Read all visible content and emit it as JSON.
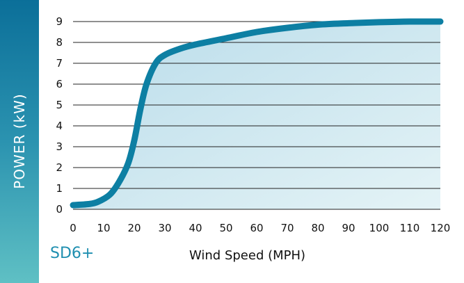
{
  "chart_data": {
    "type": "area",
    "title": "",
    "xlabel": "Wind Speed (MPH)",
    "ylabel": "POWER (kW)",
    "model_label": "SD6+",
    "xlim": [
      0,
      120
    ],
    "ylim": [
      0,
      9
    ],
    "x_ticks": [
      "0",
      "10",
      "20",
      "30",
      "40",
      "50",
      "60",
      "70",
      "80",
      "90",
      "100",
      "110",
      "120"
    ],
    "y_ticks": [
      "0",
      "1",
      "2",
      "3",
      "4",
      "5",
      "6",
      "7",
      "8",
      "9"
    ],
    "grid": "horizontal",
    "series": [
      {
        "x": [
          0,
          5,
          8,
          12,
          15,
          18,
          20,
          22,
          24,
          27,
          30,
          35,
          40,
          50,
          60,
          70,
          80,
          90,
          100,
          110,
          120
        ],
        "y": [
          0.2,
          0.25,
          0.35,
          0.7,
          1.3,
          2.2,
          3.3,
          4.8,
          6.0,
          7.0,
          7.4,
          7.7,
          7.9,
          8.2,
          8.5,
          8.7,
          8.85,
          8.92,
          8.97,
          9.0,
          9.0
        ]
      }
    ],
    "colors": {
      "line": "#0d7fa3",
      "fill_top": "#b9dcea",
      "fill_bottom": "#e4f3f6",
      "band_top": "#0b6f99",
      "band_bottom": "#5fc0c4"
    }
  }
}
